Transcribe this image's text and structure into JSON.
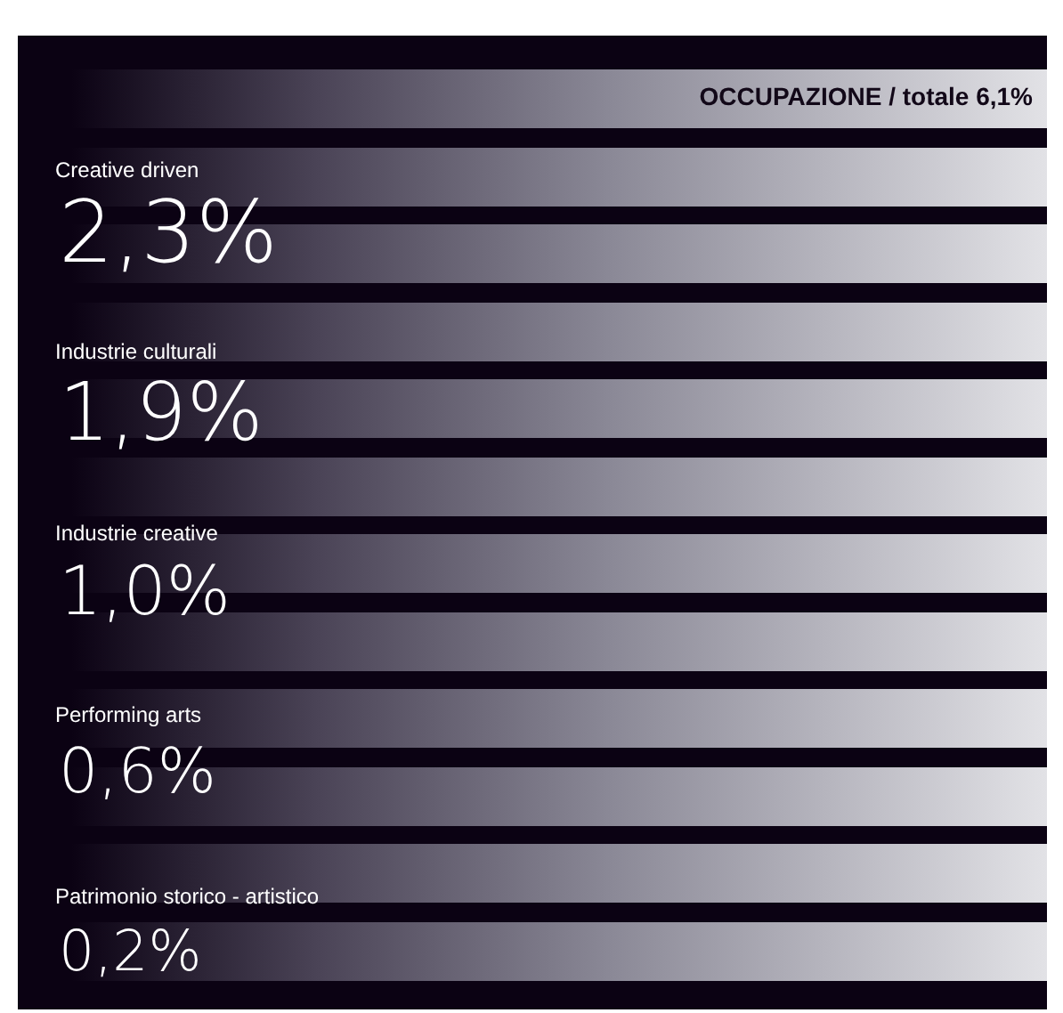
{
  "chart_data": {
    "type": "other",
    "title": "OCCUPAZIONE / totale 6,1%",
    "categories": [
      "Creative driven",
      "Industrie culturali",
      "Industrie creative",
      "Performing arts",
      "Patrimonio storico - artistico"
    ],
    "values": [
      2.3,
      1.9,
      1.0,
      0.6,
      0.2
    ],
    "value_labels": [
      "2,3%",
      "1,9%",
      "1,0%",
      "0,6%",
      "0,2%"
    ]
  }
}
